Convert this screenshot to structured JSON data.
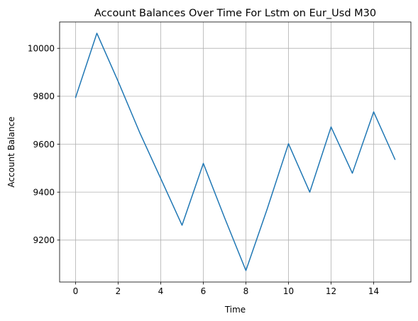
{
  "chart_data": {
    "type": "line",
    "title": "Account Balances Over Time For Lstm on Eur_Usd M30",
    "xlabel": "Time",
    "ylabel": "Account Balance",
    "xlim": [
      -0.75,
      15.75
    ],
    "ylim": [
      9025,
      10110
    ],
    "xticks": [
      0,
      2,
      4,
      6,
      8,
      10,
      12,
      14
    ],
    "yticks": [
      9200,
      9400,
      9600,
      9800,
      10000
    ],
    "grid": true,
    "series": [
      {
        "color": "#1f77b4",
        "x": [
          0,
          1,
          2,
          3,
          4,
          5,
          6,
          7,
          8,
          9,
          10,
          11,
          12,
          13,
          14,
          15
        ],
        "y": [
          9795,
          10063,
          9862,
          9651,
          9457,
          9262,
          9520,
          9293,
          9073,
          9330,
          9602,
          9400,
          9672,
          9479,
          9735,
          9537
        ]
      }
    ]
  }
}
